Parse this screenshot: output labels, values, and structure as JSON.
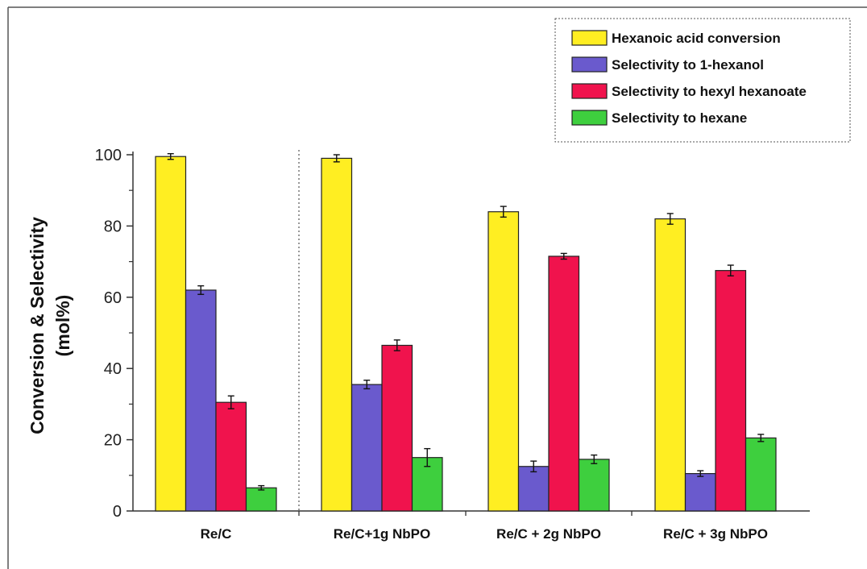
{
  "chart_data": {
    "type": "bar",
    "categories": [
      "Re/C",
      "Re/C+1g NbPO",
      "Re/C + 2g NbPO",
      "Re/C + 3g NbPO"
    ],
    "series": [
      {
        "name": "Hexanoic acid conversion",
        "color": "#ffee22",
        "values": [
          99.5,
          99.0,
          84.0,
          82.0
        ],
        "errors": [
          0.8,
          1.0,
          1.5,
          1.5
        ]
      },
      {
        "name": "Selectivity to 1-hexanol",
        "color": "#6a5acd",
        "values": [
          62.0,
          35.5,
          12.5,
          10.5
        ],
        "errors": [
          1.2,
          1.2,
          1.5,
          0.8
        ]
      },
      {
        "name": "Selectivity to hexyl hexanoate",
        "color": "#f0134d",
        "values": [
          30.5,
          46.5,
          71.5,
          67.5
        ],
        "errors": [
          1.8,
          1.5,
          0.8,
          1.5
        ]
      },
      {
        "name": "Selectivity to hexane",
        "color": "#3ecf3e",
        "values": [
          6.5,
          15.0,
          14.5,
          20.5
        ],
        "errors": [
          0.6,
          2.5,
          1.2,
          1.0
        ]
      }
    ],
    "xlabel": "",
    "ylabel_lines": [
      "Conversion & Selectivity",
      "(mol%)"
    ],
    "ylim": [
      0,
      100
    ],
    "yticks": [
      0,
      20,
      40,
      60,
      80,
      100
    ],
    "legend_position": "top-right",
    "separator_after_category": 0,
    "grid": false
  }
}
